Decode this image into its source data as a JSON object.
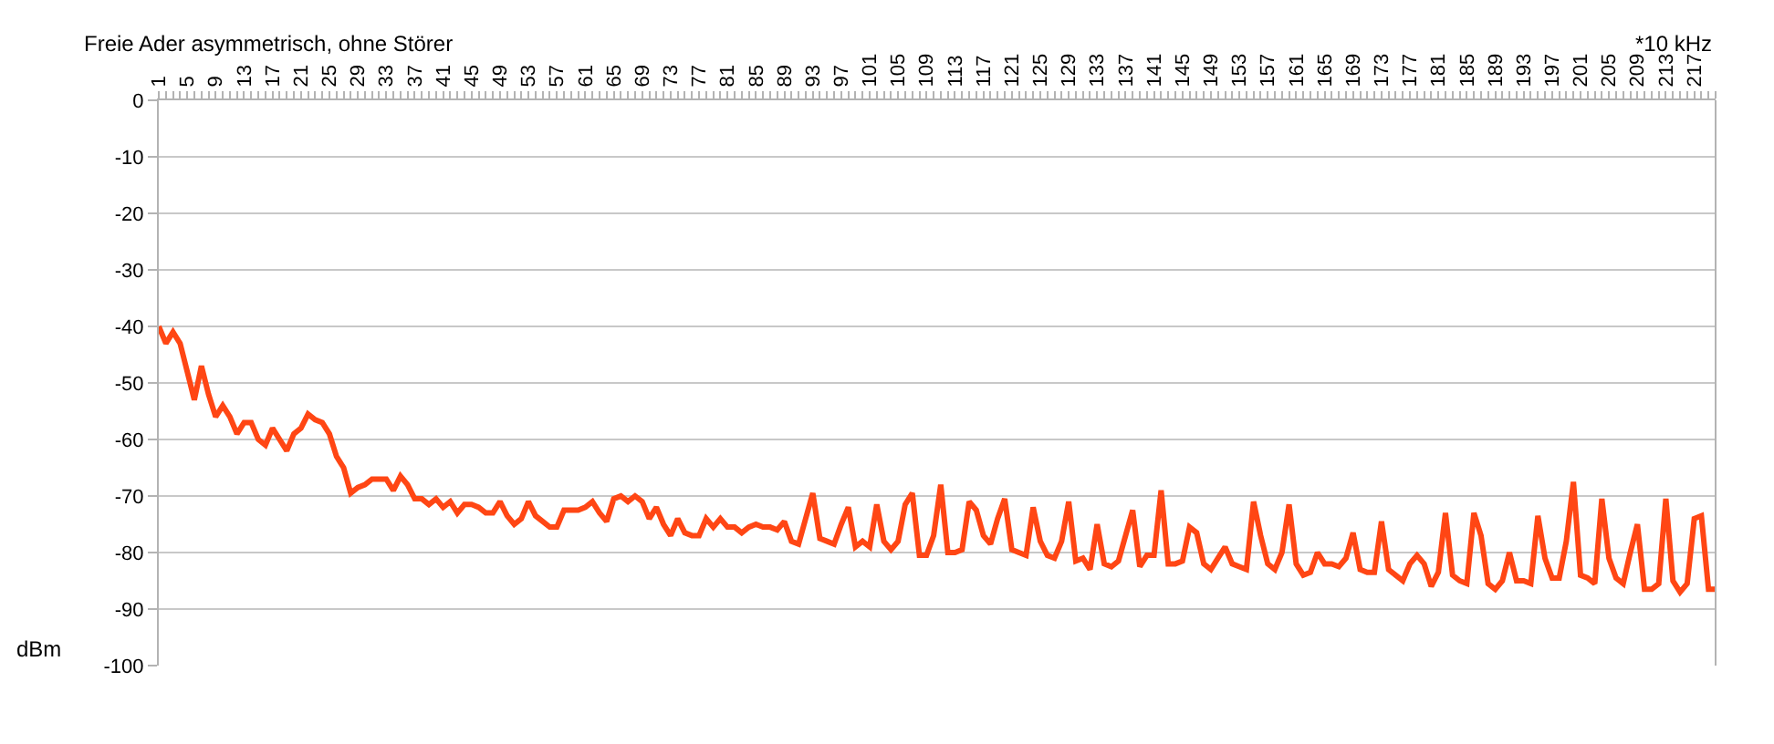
{
  "chart_data": {
    "type": "line",
    "title": "Freie Ader asymmetrisch, ohne Störer",
    "xlabel": "*10 kHz",
    "ylabel": "dBm",
    "x": [
      1,
      2,
      3,
      4,
      5,
      6,
      7,
      8,
      9,
      10,
      11,
      12,
      13,
      14,
      15,
      16,
      17,
      18,
      19,
      20,
      21,
      22,
      23,
      24,
      25,
      26,
      27,
      28,
      29,
      30,
      31,
      32,
      33,
      34,
      35,
      36,
      37,
      38,
      39,
      40,
      41,
      42,
      43,
      44,
      45,
      46,
      47,
      48,
      49,
      50,
      51,
      52,
      53,
      54,
      55,
      56,
      57,
      58,
      59,
      60,
      61,
      62,
      63,
      64,
      65,
      66,
      67,
      68,
      69,
      70,
      71,
      72,
      73,
      74,
      75,
      76,
      77,
      78,
      79,
      80,
      81,
      82,
      83,
      84,
      85,
      86,
      87,
      88,
      89,
      90,
      91,
      92,
      93,
      94,
      95,
      96,
      97,
      98,
      99,
      100,
      101,
      102,
      103,
      104,
      105,
      106,
      107,
      108,
      109,
      110,
      111,
      112,
      113,
      114,
      115,
      116,
      117,
      118,
      119,
      120,
      121,
      122,
      123,
      124,
      125,
      126,
      127,
      128,
      129,
      130,
      131,
      132,
      133,
      134,
      135,
      136,
      137,
      138,
      139,
      140,
      141,
      142,
      143,
      144,
      145,
      146,
      147,
      148,
      149,
      150,
      151,
      152,
      153,
      154,
      155,
      156,
      157,
      158,
      159,
      160,
      161,
      162,
      163,
      164,
      165,
      166,
      167,
      168,
      169,
      170,
      171,
      172,
      173,
      174,
      175,
      176,
      177,
      178,
      179,
      180,
      181,
      182,
      183,
      184,
      185,
      186,
      187,
      188,
      189,
      190,
      191,
      192,
      193,
      194,
      195,
      196,
      197,
      198,
      199,
      200,
      201,
      202,
      203,
      204,
      205,
      206,
      207,
      208,
      209,
      210,
      211,
      212,
      213,
      214,
      215,
      216,
      217,
      218,
      219,
      220
    ],
    "series": [
      {
        "color": "#ff4614",
        "values": [
          -40,
          -43,
          -41,
          -43,
          -48,
          -53,
          -47,
          -52,
          -56,
          -54,
          -56,
          -59,
          -57,
          -57,
          -60,
          -61,
          -58,
          -60,
          -62,
          -59,
          -58,
          -55.5,
          -56.5,
          -57,
          -59,
          -63,
          -65,
          -69.5,
          -68.5,
          -68,
          -67,
          -67,
          -67,
          -69,
          -66.5,
          -68,
          -70.5,
          -70.5,
          -71.5,
          -70.5,
          -72,
          -71,
          -73,
          -71.5,
          -71.5,
          -72,
          -73,
          -73,
          -71,
          -73.5,
          -75,
          -74,
          -71,
          -73.5,
          -74.5,
          -75.5,
          -75.5,
          -72.5,
          -72.5,
          -72.5,
          -72,
          -71,
          -73,
          -74.5,
          -70.5,
          -70,
          -71,
          -70,
          -71,
          -74,
          -72,
          -75,
          -77,
          -74,
          -76.5,
          -77,
          -77,
          -74,
          -75.5,
          -74,
          -75.5,
          -75.5,
          -76.5,
          -75.5,
          -75,
          -75.5,
          -75.5,
          -76,
          -74.5,
          -78,
          -78.5,
          -74,
          -69.5,
          -77.5,
          -78,
          -78.5,
          -75,
          -72,
          -79,
          -78,
          -79,
          -71.5,
          -78,
          -79.5,
          -78,
          -71.5,
          -69.5,
          -80.5,
          -80.5,
          -77,
          -68,
          -80,
          -80,
          -79.5,
          -71,
          -72.5,
          -77,
          -78.5,
          -74,
          -70.5,
          -79.5,
          -80,
          -80.5,
          -72,
          -78,
          -80.5,
          -81,
          -78,
          -71,
          -81.5,
          -81,
          -83,
          -75,
          -82,
          -82.5,
          -81.5,
          -77,
          -72.5,
          -82.5,
          -80.5,
          -80.5,
          -69,
          -82,
          -82,
          -81.5,
          -75.5,
          -76.5,
          -82,
          -83,
          -81,
          -79,
          -82,
          -82.5,
          -83,
          -71,
          -77,
          -82,
          -83,
          -80,
          -71.5,
          -82,
          -84,
          -83.5,
          -80,
          -82,
          -82,
          -82.5,
          -81,
          -76.5,
          -83,
          -83.5,
          -83.5,
          -74.5,
          -83,
          -84,
          -85,
          -82,
          -80.5,
          -82,
          -86,
          -83.5,
          -73,
          -84,
          -85,
          -85.5,
          -73,
          -77,
          -85.5,
          -86.5,
          -85,
          -80,
          -85,
          -85,
          -85.5,
          -73.5,
          -81,
          -84.5,
          -84.5,
          -78,
          -67.5,
          -84,
          -84.5,
          -85.5,
          -70.5,
          -81,
          -84.5,
          -85.5,
          -80,
          -75,
          -86.5,
          -86.5,
          -85.5,
          -70.5,
          -85,
          -87,
          -85.5,
          -74,
          -73.5,
          -86.5,
          -86.5
        ]
      }
    ],
    "xlim": [
      1,
      220
    ],
    "xticks": [
      1,
      5,
      9,
      13,
      17,
      21,
      25,
      29,
      33,
      37,
      41,
      45,
      49,
      53,
      57,
      61,
      65,
      69,
      73,
      77,
      81,
      85,
      89,
      93,
      97,
      101,
      105,
      109,
      113,
      117,
      121,
      125,
      129,
      133,
      137,
      141,
      145,
      149,
      153,
      157,
      161,
      165,
      169,
      173,
      177,
      181,
      185,
      189,
      193,
      197,
      201,
      205,
      209,
      213,
      217
    ],
    "ylim": [
      -100,
      0
    ],
    "yticks": [
      0,
      -10,
      -20,
      -30,
      -40,
      -50,
      -60,
      -70,
      -80,
      -90,
      -100
    ],
    "grid": "y",
    "marker": "none",
    "line_style": "solid"
  }
}
